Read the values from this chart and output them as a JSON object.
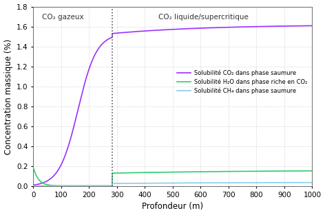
{
  "xlabel": "Profondeur (m)",
  "ylabel": "Concentration massique (%)",
  "xlim": [
    0,
    1000
  ],
  "ylim": [
    0,
    1.8
  ],
  "yticks": [
    0,
    0.2,
    0.4,
    0.6,
    0.8,
    1.0,
    1.2,
    1.4,
    1.6,
    1.8
  ],
  "xticks": [
    0,
    100,
    200,
    300,
    400,
    500,
    600,
    700,
    800,
    900,
    1000
  ],
  "vline_x": 283,
  "region1_label": "CO₂ gazeux",
  "region2_label": "CO₂ liquide/supercritique",
  "legend_entries": [
    "Solubilité CO₂ dans phase saumure",
    "Solubilité H₂O dans phase riche en CO₂",
    "Solubilité CH₄ dans phase saumure"
  ],
  "co2_color": "#9B30FF",
  "h2o_color": "#2ECC71",
  "ch4_color": "#87CEEB",
  "background_color": "#ffffff",
  "grid_color": "#bbbbbb"
}
